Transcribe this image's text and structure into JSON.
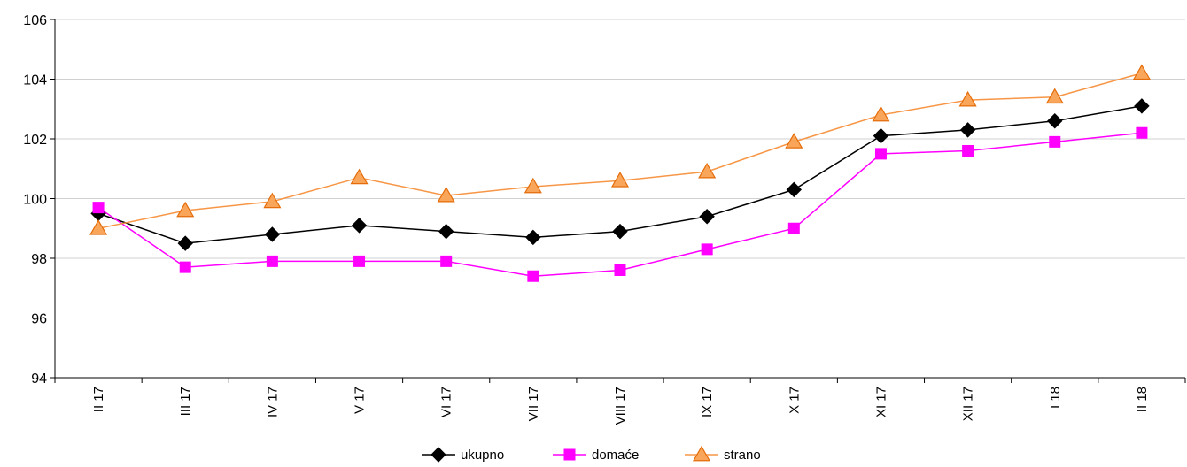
{
  "chart_data": {
    "type": "line",
    "categories": [
      "II 17",
      "III 17",
      "IV 17",
      "V 17",
      "VI 17",
      "VII 17",
      "VIII 17",
      "IX 17",
      "X 17",
      "XI 17",
      "XII 17",
      "I 18",
      "II 18"
    ],
    "ylim": [
      94,
      106
    ],
    "yticks": [
      "94",
      "96",
      "98",
      "100",
      "102",
      "104",
      "106"
    ],
    "grid": true,
    "legend_position": "bottom",
    "series": [
      {
        "name": "ukupno",
        "marker": "diamond",
        "color": "#000000",
        "values": [
          99.5,
          98.5,
          98.8,
          99.1,
          98.9,
          98.7,
          98.9,
          99.4,
          100.3,
          102.1,
          102.3,
          102.6,
          103.1
        ]
      },
      {
        "name": "domaće",
        "marker": "square",
        "color": "#ff00ff",
        "values": [
          99.7,
          97.7,
          97.9,
          97.9,
          97.9,
          97.4,
          97.6,
          98.3,
          99.0,
          101.5,
          101.6,
          101.9,
          102.2
        ]
      },
      {
        "name": "strano",
        "marker": "triangle",
        "color": "#f79646",
        "marker_fill": "#f9a65a",
        "marker_stroke": "#e46c0a",
        "values": [
          99.0,
          99.6,
          99.9,
          100.7,
          100.1,
          100.4,
          100.6,
          100.9,
          101.9,
          102.8,
          103.3,
          103.4,
          104.2
        ]
      }
    ]
  }
}
